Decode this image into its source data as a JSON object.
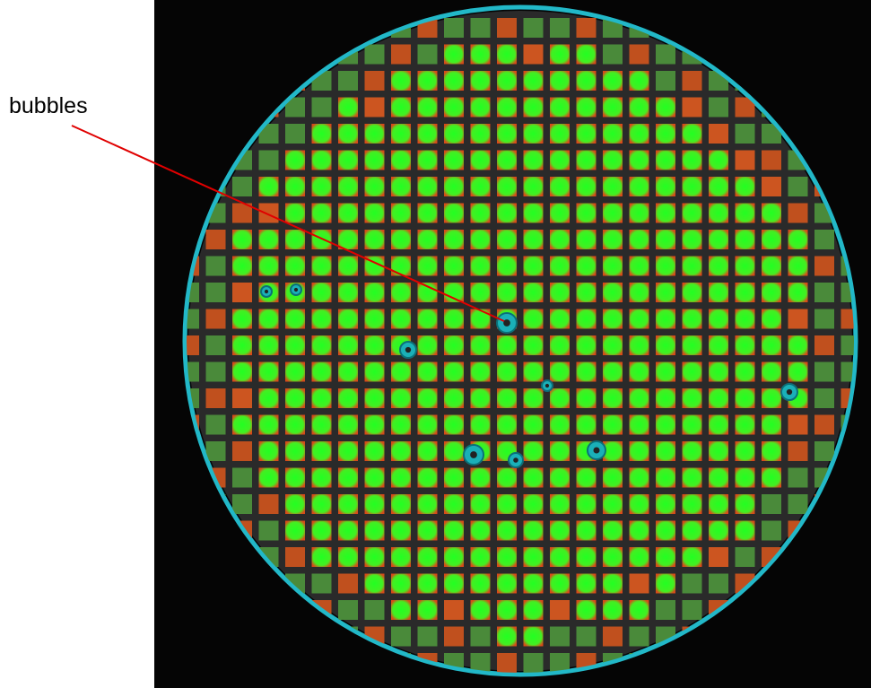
{
  "annotation": {
    "label": "bubbles"
  }
}
